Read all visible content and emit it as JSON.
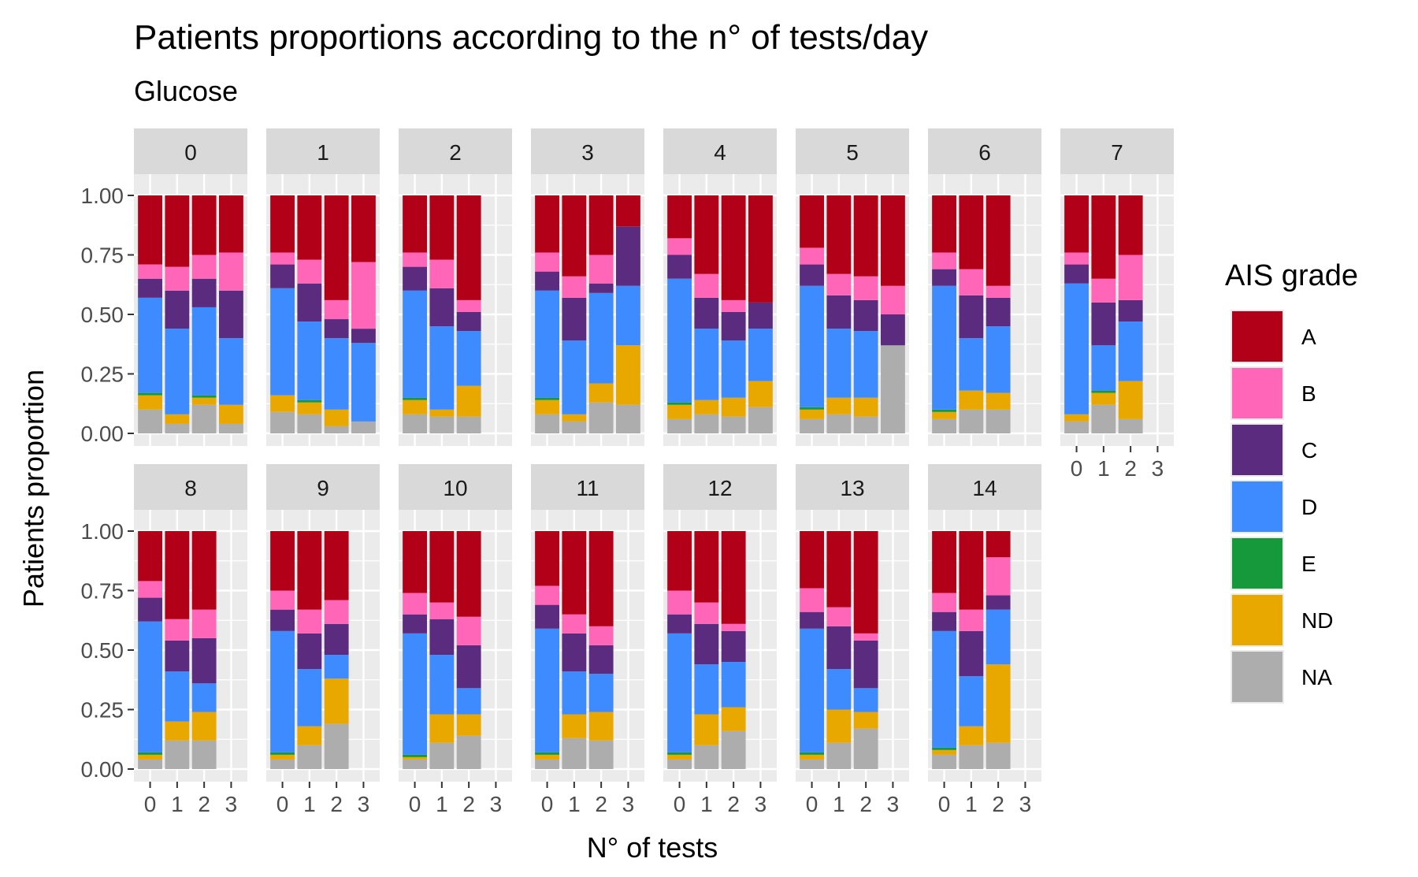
{
  "colors": {
    "A": "#B20018",
    "B": "#FF66B8",
    "C": "#5A2B7F",
    "D": "#3D8BFF",
    "E": "#16993A",
    "ND": "#E8A800",
    "NA": "#ADADAD",
    "panel_bg": "#EBEBEB",
    "strip_bg": "#D9D9D9",
    "grid": "#FFFFFF"
  },
  "chart_data": {
    "type": "bar",
    "stacked": true,
    "facet_by": "tests/day",
    "title": "Patients proportions according to the n° of tests/day",
    "subtitle": "Glucose",
    "xlabel": "N° of tests",
    "ylabel": "Patients proportion",
    "x_categories": [
      "0",
      "1",
      "2",
      "3"
    ],
    "y_ticks": [
      "0.00",
      "0.25",
      "0.50",
      "0.75",
      "1.00"
    ],
    "ylim": [
      0,
      1
    ],
    "legend": {
      "title": "AIS grade",
      "position": "right",
      "entries": [
        "A",
        "B",
        "C",
        "D",
        "E",
        "ND",
        "NA"
      ]
    },
    "stack_order_bottom_to_top": [
      "NA",
      "ND",
      "E",
      "D",
      "C",
      "B",
      "A"
    ],
    "facets": [
      {
        "label": "0",
        "bars": [
          {
            "x": "0",
            "NA": 0.1,
            "ND": 0.06,
            "E": 0.01,
            "D": 0.4,
            "C": 0.08,
            "B": 0.06,
            "A": 0.29
          },
          {
            "x": "1",
            "NA": 0.04,
            "ND": 0.04,
            "E": 0.0,
            "D": 0.36,
            "C": 0.16,
            "B": 0.1,
            "A": 0.3
          },
          {
            "x": "2",
            "NA": 0.12,
            "ND": 0.03,
            "E": 0.01,
            "D": 0.37,
            "C": 0.12,
            "B": 0.1,
            "A": 0.25
          },
          {
            "x": "3",
            "NA": 0.04,
            "ND": 0.08,
            "E": 0.0,
            "D": 0.28,
            "C": 0.2,
            "B": 0.16,
            "A": 0.24
          }
        ]
      },
      {
        "label": "1",
        "bars": [
          {
            "x": "0",
            "NA": 0.09,
            "ND": 0.07,
            "E": 0.0,
            "D": 0.45,
            "C": 0.1,
            "B": 0.05,
            "A": 0.24
          },
          {
            "x": "1",
            "NA": 0.08,
            "ND": 0.05,
            "E": 0.01,
            "D": 0.33,
            "C": 0.16,
            "B": 0.1,
            "A": 0.27
          },
          {
            "x": "2",
            "NA": 0.03,
            "ND": 0.07,
            "E": 0.0,
            "D": 0.3,
            "C": 0.08,
            "B": 0.08,
            "A": 0.44
          },
          {
            "x": "3",
            "NA": 0.05,
            "ND": 0.0,
            "E": 0.0,
            "D": 0.33,
            "C": 0.06,
            "B": 0.28,
            "A": 0.28
          }
        ]
      },
      {
        "label": "2",
        "bars": [
          {
            "x": "0",
            "NA": 0.08,
            "ND": 0.06,
            "E": 0.01,
            "D": 0.45,
            "C": 0.1,
            "B": 0.06,
            "A": 0.24
          },
          {
            "x": "1",
            "NA": 0.07,
            "ND": 0.03,
            "E": 0.0,
            "D": 0.35,
            "C": 0.16,
            "B": 0.12,
            "A": 0.27
          },
          {
            "x": "2",
            "NA": 0.07,
            "ND": 0.13,
            "E": 0.0,
            "D": 0.23,
            "C": 0.08,
            "B": 0.05,
            "A": 0.44
          }
        ]
      },
      {
        "label": "3",
        "bars": [
          {
            "x": "0",
            "NA": 0.08,
            "ND": 0.06,
            "E": 0.01,
            "D": 0.45,
            "C": 0.08,
            "B": 0.08,
            "A": 0.24
          },
          {
            "x": "1",
            "NA": 0.05,
            "ND": 0.03,
            "E": 0.0,
            "D": 0.31,
            "C": 0.18,
            "B": 0.09,
            "A": 0.34
          },
          {
            "x": "2",
            "NA": 0.13,
            "ND": 0.08,
            "E": 0.0,
            "D": 0.38,
            "C": 0.04,
            "B": 0.12,
            "A": 0.25
          },
          {
            "x": "3",
            "NA": 0.12,
            "ND": 0.25,
            "E": 0.0,
            "D": 0.25,
            "C": 0.25,
            "B": 0.0,
            "A": 0.13
          }
        ]
      },
      {
        "label": "4",
        "bars": [
          {
            "x": "0",
            "NA": 0.06,
            "ND": 0.06,
            "E": 0.01,
            "D": 0.52,
            "C": 0.1,
            "B": 0.07,
            "A": 0.18
          },
          {
            "x": "1",
            "NA": 0.08,
            "ND": 0.06,
            "E": 0.0,
            "D": 0.3,
            "C": 0.13,
            "B": 0.1,
            "A": 0.33
          },
          {
            "x": "2",
            "NA": 0.07,
            "ND": 0.08,
            "E": 0.0,
            "D": 0.24,
            "C": 0.12,
            "B": 0.05,
            "A": 0.44
          },
          {
            "x": "3",
            "NA": 0.11,
            "ND": 0.11,
            "E": 0.0,
            "D": 0.22,
            "C": 0.11,
            "B": 0.0,
            "A": 0.45
          }
        ]
      },
      {
        "label": "5",
        "bars": [
          {
            "x": "0",
            "NA": 0.06,
            "ND": 0.04,
            "E": 0.01,
            "D": 0.51,
            "C": 0.09,
            "B": 0.07,
            "A": 0.22
          },
          {
            "x": "1",
            "NA": 0.08,
            "ND": 0.07,
            "E": 0.0,
            "D": 0.29,
            "C": 0.14,
            "B": 0.09,
            "A": 0.33
          },
          {
            "x": "2",
            "NA": 0.07,
            "ND": 0.08,
            "E": 0.0,
            "D": 0.28,
            "C": 0.13,
            "B": 0.1,
            "A": 0.34
          },
          {
            "x": "3",
            "NA": 0.37,
            "ND": 0.0,
            "E": 0.0,
            "D": 0.0,
            "C": 0.13,
            "B": 0.12,
            "A": 0.38
          }
        ]
      },
      {
        "label": "6",
        "bars": [
          {
            "x": "0",
            "NA": 0.06,
            "ND": 0.03,
            "E": 0.01,
            "D": 0.52,
            "C": 0.07,
            "B": 0.07,
            "A": 0.24
          },
          {
            "x": "1",
            "NA": 0.1,
            "ND": 0.08,
            "E": 0.0,
            "D": 0.22,
            "C": 0.18,
            "B": 0.11,
            "A": 0.31
          },
          {
            "x": "2",
            "NA": 0.1,
            "ND": 0.07,
            "E": 0.0,
            "D": 0.28,
            "C": 0.12,
            "B": 0.05,
            "A": 0.38
          }
        ]
      },
      {
        "label": "7",
        "bars": [
          {
            "x": "0",
            "NA": 0.05,
            "ND": 0.03,
            "E": 0.0,
            "D": 0.55,
            "C": 0.08,
            "B": 0.05,
            "A": 0.24
          },
          {
            "x": "1",
            "NA": 0.12,
            "ND": 0.05,
            "E": 0.01,
            "D": 0.19,
            "C": 0.18,
            "B": 0.1,
            "A": 0.35
          },
          {
            "x": "2",
            "NA": 0.06,
            "ND": 0.16,
            "E": 0.0,
            "D": 0.25,
            "C": 0.09,
            "B": 0.19,
            "A": 0.25
          }
        ]
      },
      {
        "label": "8",
        "bars": [
          {
            "x": "0",
            "NA": 0.04,
            "ND": 0.02,
            "E": 0.01,
            "D": 0.55,
            "C": 0.1,
            "B": 0.07,
            "A": 0.21
          },
          {
            "x": "1",
            "NA": 0.12,
            "ND": 0.08,
            "E": 0.0,
            "D": 0.21,
            "C": 0.13,
            "B": 0.09,
            "A": 0.37
          },
          {
            "x": "2",
            "NA": 0.12,
            "ND": 0.12,
            "E": 0.0,
            "D": 0.12,
            "C": 0.19,
            "B": 0.12,
            "A": 0.33
          }
        ]
      },
      {
        "label": "9",
        "bars": [
          {
            "x": "0",
            "NA": 0.04,
            "ND": 0.02,
            "E": 0.01,
            "D": 0.51,
            "C": 0.09,
            "B": 0.08,
            "A": 0.25
          },
          {
            "x": "1",
            "NA": 0.1,
            "ND": 0.08,
            "E": 0.0,
            "D": 0.24,
            "C": 0.15,
            "B": 0.1,
            "A": 0.33
          },
          {
            "x": "2",
            "NA": 0.19,
            "ND": 0.19,
            "E": 0.0,
            "D": 0.1,
            "C": 0.13,
            "B": 0.1,
            "A": 0.29
          }
        ]
      },
      {
        "label": "10",
        "bars": [
          {
            "x": "0",
            "NA": 0.04,
            "ND": 0.01,
            "E": 0.01,
            "D": 0.51,
            "C": 0.08,
            "B": 0.09,
            "A": 0.26
          },
          {
            "x": "1",
            "NA": 0.11,
            "ND": 0.12,
            "E": 0.0,
            "D": 0.25,
            "C": 0.15,
            "B": 0.07,
            "A": 0.3
          },
          {
            "x": "2",
            "NA": 0.14,
            "ND": 0.09,
            "E": 0.0,
            "D": 0.11,
            "C": 0.18,
            "B": 0.12,
            "A": 0.36
          }
        ]
      },
      {
        "label": "11",
        "bars": [
          {
            "x": "0",
            "NA": 0.04,
            "ND": 0.02,
            "E": 0.01,
            "D": 0.52,
            "C": 0.1,
            "B": 0.08,
            "A": 0.23
          },
          {
            "x": "1",
            "NA": 0.13,
            "ND": 0.1,
            "E": 0.0,
            "D": 0.18,
            "C": 0.16,
            "B": 0.08,
            "A": 0.35
          },
          {
            "x": "2",
            "NA": 0.12,
            "ND": 0.12,
            "E": 0.0,
            "D": 0.16,
            "C": 0.12,
            "B": 0.08,
            "A": 0.4
          }
        ]
      },
      {
        "label": "12",
        "bars": [
          {
            "x": "0",
            "NA": 0.04,
            "ND": 0.02,
            "E": 0.01,
            "D": 0.5,
            "C": 0.08,
            "B": 0.1,
            "A": 0.25
          },
          {
            "x": "1",
            "NA": 0.1,
            "ND": 0.13,
            "E": 0.0,
            "D": 0.21,
            "C": 0.17,
            "B": 0.09,
            "A": 0.3
          },
          {
            "x": "2",
            "NA": 0.16,
            "ND": 0.1,
            "E": 0.0,
            "D": 0.19,
            "C": 0.13,
            "B": 0.03,
            "A": 0.39
          }
        ]
      },
      {
        "label": "13",
        "bars": [
          {
            "x": "0",
            "NA": 0.04,
            "ND": 0.02,
            "E": 0.01,
            "D": 0.52,
            "C": 0.07,
            "B": 0.1,
            "A": 0.24
          },
          {
            "x": "1",
            "NA": 0.11,
            "ND": 0.14,
            "E": 0.0,
            "D": 0.17,
            "C": 0.18,
            "B": 0.08,
            "A": 0.32
          },
          {
            "x": "2",
            "NA": 0.17,
            "ND": 0.07,
            "E": 0.0,
            "D": 0.1,
            "C": 0.2,
            "B": 0.03,
            "A": 0.43
          }
        ]
      },
      {
        "label": "14",
        "bars": [
          {
            "x": "0",
            "NA": 0.06,
            "ND": 0.02,
            "E": 0.01,
            "D": 0.49,
            "C": 0.08,
            "B": 0.08,
            "A": 0.26
          },
          {
            "x": "1",
            "NA": 0.1,
            "ND": 0.08,
            "E": 0.0,
            "D": 0.21,
            "C": 0.19,
            "B": 0.09,
            "A": 0.33
          },
          {
            "x": "2",
            "NA": 0.11,
            "ND": 0.33,
            "E": 0.0,
            "D": 0.23,
            "C": 0.06,
            "B": 0.16,
            "A": 0.11
          }
        ]
      }
    ]
  }
}
